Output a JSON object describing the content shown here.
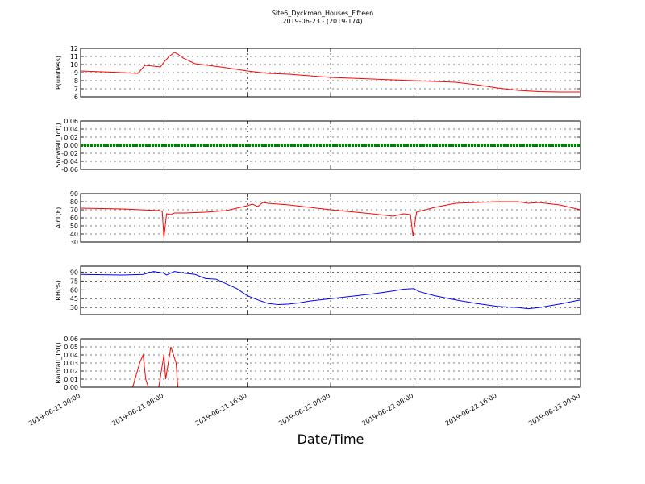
{
  "title": "Site6_Dyckman_Houses_Fifteen",
  "subtitle": "2019-06-23 - (2019-174)",
  "xlabel": "Date/Time",
  "xlim": [
    "2019-06-21 00:00",
    "2019-06-23 00:00"
  ],
  "xticks": [
    "2019-06-21 00:00",
    "2019-06-21 08:00",
    "2019-06-21 16:00",
    "2019-06-22 00:00",
    "2019-06-22 08:00",
    "2019-06-22 16:00",
    "2019-06-23 00:00"
  ],
  "chart_data": [
    {
      "type": "line",
      "ylabel": "P(unitless)",
      "color": "#ff0000",
      "grid": true,
      "ylim": [
        6,
        12
      ],
      "yticks": [
        6,
        7,
        8,
        9,
        10,
        11,
        12
      ],
      "x": [
        "2019-06-21 00:00",
        "2019-06-21 02:00",
        "2019-06-21 04:00",
        "2019-06-21 05:30",
        "2019-06-21 06:10",
        "2019-06-21 07:00",
        "2019-06-21 07:40",
        "2019-06-21 08:00",
        "2019-06-21 08:30",
        "2019-06-21 09:00",
        "2019-06-21 09:20",
        "2019-06-21 09:50",
        "2019-06-21 11:00",
        "2019-06-21 14:00",
        "2019-06-21 16:00",
        "2019-06-21 18:00",
        "2019-06-21 20:00",
        "2019-06-21 22:00",
        "2019-06-22 00:00",
        "2019-06-22 04:00",
        "2019-06-22 08:00",
        "2019-06-22 12:00",
        "2019-06-22 14:00",
        "2019-06-22 16:00",
        "2019-06-22 18:00",
        "2019-06-22 20:00",
        "2019-06-22 22:00",
        "2019-06-23 00:00"
      ],
      "values": [
        9.2,
        9.1,
        9.0,
        8.9,
        9.9,
        9.8,
        9.7,
        10.3,
        11.0,
        11.5,
        11.3,
        10.8,
        10.1,
        9.6,
        9.2,
        8.9,
        8.8,
        8.6,
        8.4,
        8.2,
        8.0,
        7.8,
        7.5,
        7.1,
        6.8,
        6.65,
        6.6,
        6.6
      ]
    },
    {
      "type": "line",
      "ylabel": "Snowfall_Tot()",
      "color": "#008000",
      "grid": true,
      "ylim": [
        -0.06,
        0.06
      ],
      "yticks": [
        -0.06,
        -0.04,
        -0.02,
        {
          "value": 0,
          "label": "0.00"
        },
        0.02,
        0.04,
        0.06
      ],
      "x": [
        "2019-06-21 00:00",
        "2019-06-21 04:00",
        "2019-06-21 08:00",
        "2019-06-21 12:00",
        "2019-06-21 16:00",
        "2019-06-21 20:00",
        "2019-06-22 00:00",
        "2019-06-22 04:00",
        "2019-06-22 08:00",
        "2019-06-22 12:00",
        "2019-06-22 16:00",
        "2019-06-22 20:00",
        "2019-06-23 00:00"
      ],
      "values": [
        0,
        0,
        0,
        0,
        0,
        0,
        0,
        0,
        0,
        0,
        0,
        0,
        0
      ]
    },
    {
      "type": "line",
      "ylabel": "AirT(F)",
      "color": "#ff0000",
      "grid": true,
      "ylim": [
        30,
        90
      ],
      "yticks": [
        30,
        40,
        50,
        60,
        70,
        80,
        90
      ],
      "x": [
        "2019-06-21 00:00",
        "2019-06-21 04:00",
        "2019-06-21 07:30",
        "2019-06-21 07:50",
        "2019-06-21 08:00",
        "2019-06-21 08:15",
        "2019-06-21 08:40",
        "2019-06-21 09:00",
        "2019-06-21 10:00",
        "2019-06-21 12:00",
        "2019-06-21 14:00",
        "2019-06-21 15:00",
        "2019-06-21 16:00",
        "2019-06-21 16:30",
        "2019-06-21 17:00",
        "2019-06-21 17:30",
        "2019-06-21 18:00",
        "2019-06-21 20:00",
        "2019-06-21 22:00",
        "2019-06-22 00:00",
        "2019-06-22 04:00",
        "2019-06-22 06:00",
        "2019-06-22 07:00",
        "2019-06-22 07:40",
        "2019-06-22 07:55",
        "2019-06-22 08:15",
        "2019-06-22 10:00",
        "2019-06-22 12:00",
        "2019-06-22 14:00",
        "2019-06-22 16:00",
        "2019-06-22 18:00",
        "2019-06-22 19:00",
        "2019-06-22 20:00",
        "2019-06-22 22:00",
        "2019-06-23 00:00"
      ],
      "values": [
        72,
        71,
        69,
        68,
        35,
        65,
        64,
        66,
        66,
        67,
        69,
        72,
        75,
        77,
        74,
        79,
        78,
        76,
        73,
        70,
        65,
        62,
        65,
        64,
        37,
        67,
        73,
        78,
        79,
        80,
        80,
        78,
        79,
        76,
        70
      ]
    },
    {
      "type": "line",
      "ylabel": "RH(%)",
      "color": "#0000ff",
      "grid": true,
      "ylim": [
        18,
        100
      ],
      "yticks": [
        30,
        45,
        60,
        75,
        90
      ],
      "x": [
        "2019-06-21 00:00",
        "2019-06-21 04:00",
        "2019-06-21 06:00",
        "2019-06-21 07:00",
        "2019-06-21 08:00",
        "2019-06-21 08:15",
        "2019-06-21 09:00",
        "2019-06-21 10:00",
        "2019-06-21 11:00",
        "2019-06-21 12:00",
        "2019-06-21 13:00",
        "2019-06-21 14:00",
        "2019-06-21 15:00",
        "2019-06-21 16:00",
        "2019-06-21 17:00",
        "2019-06-21 18:00",
        "2019-06-21 19:00",
        "2019-06-21 20:00",
        "2019-06-21 21:00",
        "2019-06-21 22:00",
        "2019-06-22 00:00",
        "2019-06-22 04:00",
        "2019-06-22 06:00",
        "2019-06-22 07:00",
        "2019-06-22 08:00",
        "2019-06-22 08:30",
        "2019-06-22 10:00",
        "2019-06-22 12:00",
        "2019-06-22 14:00",
        "2019-06-22 16:00",
        "2019-06-22 18:00",
        "2019-06-22 19:00",
        "2019-06-22 20:00",
        "2019-06-22 22:00",
        "2019-06-23 00:00"
      ],
      "values": [
        86,
        85,
        86,
        91,
        88,
        85,
        91,
        88,
        86,
        79,
        78,
        70,
        62,
        50,
        43,
        37,
        35,
        36,
        38,
        41,
        45,
        53,
        58,
        61,
        62,
        57,
        50,
        43,
        37,
        32,
        30,
        28,
        30,
        36,
        43
      ]
    },
    {
      "type": "line",
      "ylabel": "Rainfall_Tot()",
      "color": "#ff0000",
      "grid": true,
      "ylim": [
        0,
        0.06
      ],
      "yticks": [
        {
          "value": 0,
          "label": "0.00"
        },
        0.01,
        0.02,
        0.03,
        0.04,
        0.05,
        0.06
      ],
      "x": [
        "2019-06-21 00:00",
        "2019-06-21 05:00",
        "2019-06-21 05:40",
        "2019-06-21 06:00",
        "2019-06-21 06:15",
        "2019-06-21 06:30",
        "2019-06-21 07:30",
        "2019-06-21 08:00",
        "2019-06-21 08:10",
        "2019-06-21 08:40",
        "2019-06-21 09:10",
        "2019-06-21 09:20",
        "2019-06-23 00:00"
      ],
      "values": [
        0,
        0,
        0.03,
        0.04,
        0.01,
        0,
        0,
        0.04,
        0.01,
        0.05,
        0.03,
        0,
        0
      ]
    }
  ]
}
